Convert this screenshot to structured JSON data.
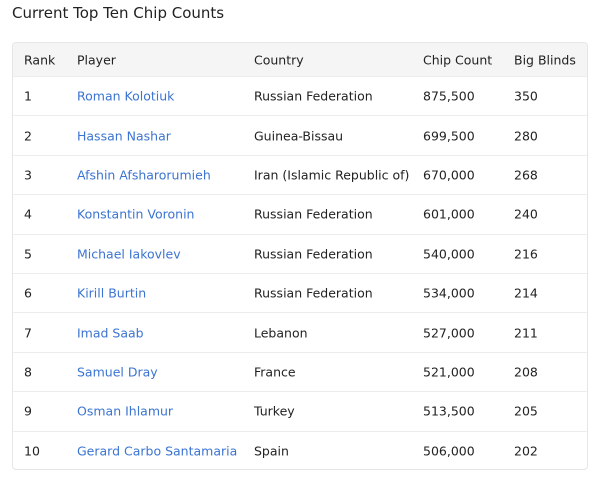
{
  "title": "Current Top Ten Chip Counts",
  "columns": [
    "Rank",
    "Player",
    "Country",
    "Chip Count",
    "Big Blinds"
  ],
  "rows": [
    [
      "1",
      "Roman Kolotiuk",
      "Russian Federation",
      "875,500",
      "350"
    ],
    [
      "2",
      "Hassan Nashar",
      "Guinea-Bissau",
      "699,500",
      "280"
    ],
    [
      "3",
      "Afshin Afsharorumieh",
      "Iran (Islamic Republic of)",
      "670,000",
      "268"
    ],
    [
      "4",
      "Konstantin Voronin",
      "Russian Federation",
      "601,000",
      "240"
    ],
    [
      "5",
      "Michael Iakovlev",
      "Russian Federation",
      "540,000",
      "216"
    ],
    [
      "6",
      "Kirill Burtin",
      "Russian Federation",
      "534,000",
      "214"
    ],
    [
      "7",
      "Imad Saab",
      "Lebanon",
      "527,000",
      "211"
    ],
    [
      "8",
      "Samuel Dray",
      "France",
      "521,000",
      "208"
    ],
    [
      "9",
      "Osman Ihlamur",
      "Turkey",
      "513,500",
      "205"
    ],
    [
      "10",
      "Gerard Carbo Santamaria",
      "Spain",
      "506,000",
      "202"
    ]
  ],
  "colors": {
    "link": "#3b74d1",
    "header_bg": "#f5f5f5"
  }
}
